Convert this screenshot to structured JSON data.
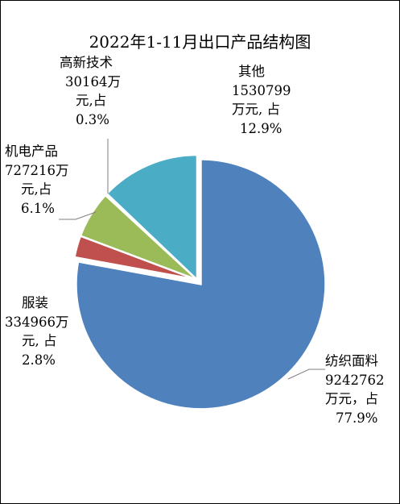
{
  "chart_data": {
    "type": "pie",
    "title": "2022年1-11月出口产品结构图",
    "unit": "万元",
    "exploded": "纺织面料",
    "colors": [
      "#4f81bd",
      "#c0504d",
      "#9bbb59",
      "#8064a2",
      "#4bacc6"
    ],
    "slices": [
      {
        "name": "纺织面料",
        "value": 9242762,
        "percent": 77.9,
        "label_lines": [
          "纺织面料",
          "9242762",
          "万元，占",
          "77.9%"
        ]
      },
      {
        "name": "服装",
        "value": 334966,
        "percent": 2.8,
        "label_lines": [
          "服装",
          "334966万",
          "元, 占",
          "2.8%"
        ]
      },
      {
        "name": "机电产品",
        "value": 727216,
        "percent": 6.1,
        "label_lines": [
          "机电产品",
          "727216万",
          "元,占",
          "6.1%"
        ]
      },
      {
        "name": "高新技术",
        "value": 30164,
        "percent": 0.3,
        "label_lines": [
          "高新技术",
          "30164万",
          "元,占",
          "0.3%"
        ]
      },
      {
        "name": "其他",
        "value": 1530799,
        "percent": 12.9,
        "label_lines": [
          "其他",
          "1530799",
          "万元, 占",
          "12.9%"
        ]
      }
    ]
  }
}
